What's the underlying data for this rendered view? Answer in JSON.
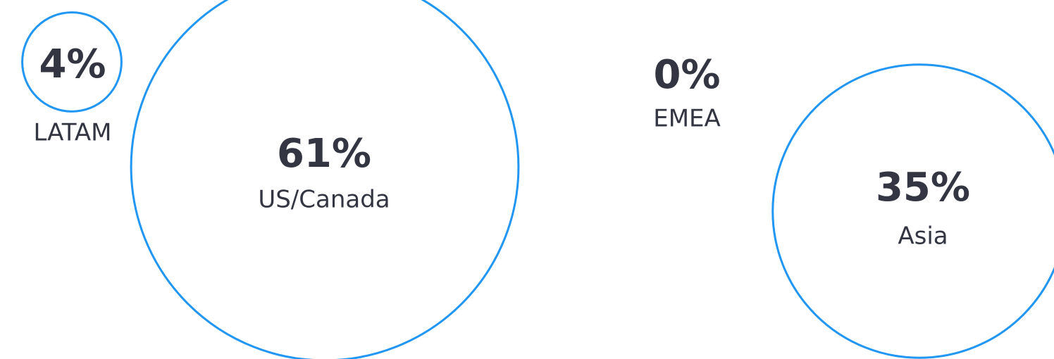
{
  "chart_data": {
    "type": "bubble",
    "categories": [
      "LATAM",
      "US/Canada",
      "EMEA",
      "Asia"
    ],
    "values": [
      4,
      61,
      0,
      35
    ],
    "value_labels": [
      "4%",
      "61%",
      "0%",
      "35%"
    ],
    "color": "#2196f3"
  }
}
